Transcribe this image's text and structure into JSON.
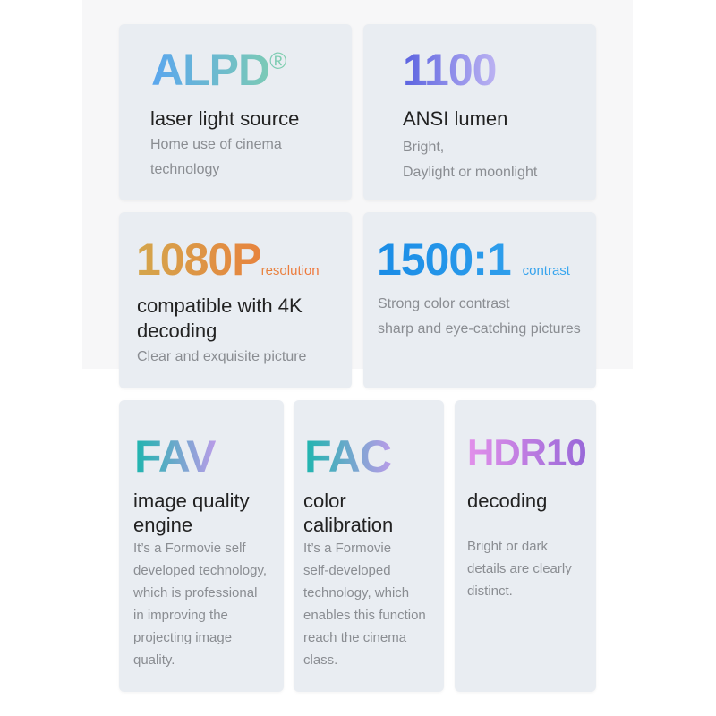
{
  "cards": [
    {
      "big": "ALPD",
      "mark": "®",
      "title": "laser light source",
      "desc": [
        "Home use of cinema",
        "technology"
      ]
    },
    {
      "big": "1100",
      "title": "ANSI lumen",
      "desc": [
        "Bright,",
        "Daylight or moonlight"
      ]
    },
    {
      "big": "1080P",
      "suffix": "resolution",
      "title": [
        "compatible with 4K",
        "decoding"
      ],
      "desc": [
        "Clear and exquisite picture"
      ]
    },
    {
      "big": "1500:1",
      "suffix": "contrast",
      "title": "",
      "desc": [
        "Strong color contrast",
        "sharp and eye-catching pictures"
      ]
    },
    {
      "big": "FAV",
      "title": [
        "image quality",
        "engine"
      ],
      "desc": [
        "It’s a Formovie self",
        "developed technology,",
        "which is professional",
        "in improving the",
        "projecting image",
        "quality."
      ]
    },
    {
      "big": "FAC",
      "title": [
        "color",
        "calibration"
      ],
      "desc": [
        "It’s a Formovie",
        "self-developed",
        "technology, which",
        "enables this function",
        "reach the cinema",
        "class."
      ]
    },
    {
      "big": "HDR10",
      "title": "decoding",
      "desc": [
        "Bright or dark",
        "details are clearly",
        "distinct."
      ]
    }
  ],
  "colors": {
    "card": "#e9edf2",
    "alpd": [
      "#5aa6ee",
      "#7fcfb0"
    ],
    "lumen": [
      "#5b63e0",
      "#b9b0f0"
    ],
    "p1080": [
      "#d8a048",
      "#f07a3a"
    ],
    "contrast": [
      "#1c8ee8",
      "#3aa8f0"
    ],
    "fav": [
      "#1fb5b0",
      "#b79be8"
    ],
    "hdr": [
      "#e08ee8",
      "#9a6ad8"
    ]
  }
}
